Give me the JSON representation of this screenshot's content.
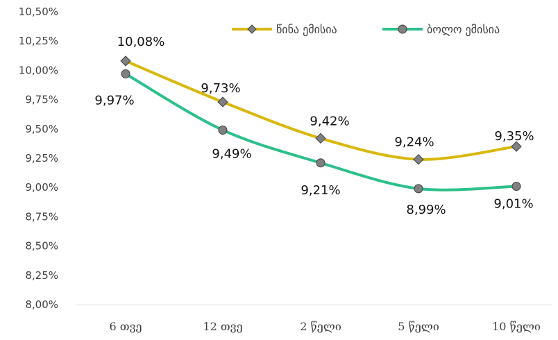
{
  "chart_data": {
    "type": "line",
    "categories": [
      "6 თვე",
      "12 თვე",
      "2 წელი",
      "5 წელი",
      "10 წელი"
    ],
    "y_ticks": [
      "8,00%",
      "8,25%",
      "8,50%",
      "8,75%",
      "9,00%",
      "9,25%",
      "9,50%",
      "9,75%",
      "10,00%",
      "10,25%",
      "10,50%"
    ],
    "ylim": [
      8.0,
      10.5
    ],
    "grid": false,
    "legend_position": "top-right",
    "series": [
      {
        "name": "წინა ემისია",
        "color": "#D9B80D",
        "marker": "diamond",
        "marker_color": "#808080",
        "values": [
          10.08,
          9.73,
          9.42,
          9.24,
          9.35
        ],
        "labels": [
          "10,08%",
          "9,73%",
          "9,42%",
          "9,24%",
          "9,35%"
        ]
      },
      {
        "name": "ბოლო ემისია",
        "color": "#2DC08A",
        "marker": "circle",
        "marker_color": "#808080",
        "values": [
          9.97,
          9.49,
          9.21,
          8.99,
          9.01
        ],
        "labels": [
          "9,97%",
          "9,49%",
          "9,21%",
          "8,99%",
          "9,01%"
        ]
      }
    ]
  }
}
